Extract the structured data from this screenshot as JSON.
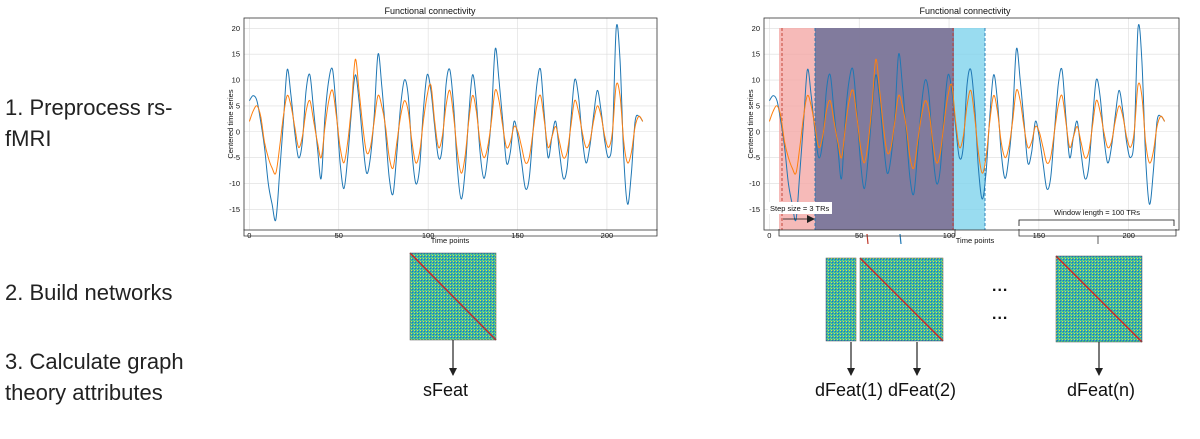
{
  "steps": {
    "step1": "1. Preprocess rs-fMRI",
    "step2": "2. Build networks",
    "step3": "3. Calculate graph theory attributes"
  },
  "chart_data": [
    {
      "type": "line",
      "title": "Functional connectivity",
      "xlabel": "Time points",
      "ylabel": "Centered time series",
      "xlim": [
        -3,
        228
      ],
      "ylim": [
        -19,
        22
      ],
      "xticks": [
        "0",
        "50",
        "100",
        "150",
        "200"
      ],
      "yticks": [
        "20",
        "15",
        "10",
        "5",
        "0",
        "-5",
        "-10",
        "-15"
      ],
      "grid": true,
      "series": [
        {
          "color": "#1f77b4",
          "values": [
            6,
            7,
            6,
            2,
            -3,
            -10,
            -14,
            -17,
            -8,
            2,
            12,
            7,
            0,
            -5,
            -2,
            8,
            11,
            4,
            -3,
            -9,
            3,
            10,
            12,
            4,
            -6,
            -11,
            -5,
            4,
            11,
            6,
            -2,
            -8,
            -5,
            3,
            15,
            9,
            0,
            -9,
            -12,
            -4,
            5,
            10,
            7,
            -4,
            -10,
            -7,
            4,
            11,
            8,
            1,
            -5,
            -3,
            9,
            12,
            5,
            -7,
            -13,
            -8,
            3,
            11,
            6,
            -4,
            -9,
            -5,
            3,
            16,
            10,
            2,
            -6,
            -4,
            2,
            -1,
            -6,
            -11,
            -9,
            0,
            9,
            12,
            3,
            -5,
            -1,
            2,
            -4,
            -9,
            -7,
            2,
            10,
            7,
            -1,
            -6,
            -3,
            3,
            8,
            4,
            -2,
            -5,
            -1,
            20,
            14,
            -5,
            -14,
            -8,
            2,
            3,
            2
          ]
        },
        {
          "color": "#ff7f0e",
          "values": [
            2,
            4,
            5,
            3,
            -2,
            -5,
            -7,
            -8,
            -3,
            3,
            7,
            5,
            1,
            -3,
            -1,
            4,
            6,
            2,
            -2,
            -5,
            1,
            6,
            8,
            3,
            -3,
            -6,
            -2,
            5,
            14,
            8,
            1,
            -4,
            -3,
            2,
            7,
            5,
            1,
            -5,
            -7,
            -2,
            3,
            6,
            4,
            -2,
            -6,
            -4,
            2,
            7,
            9,
            2,
            -3,
            -1,
            5,
            8,
            3,
            -4,
            -8,
            -5,
            2,
            7,
            4,
            -2,
            -5,
            -3,
            2,
            8,
            6,
            1,
            -3,
            -2,
            1,
            0,
            -3,
            -6,
            -5,
            0,
            5,
            7,
            2,
            -3,
            -1,
            1,
            -2,
            -5,
            -4,
            1,
            6,
            4,
            0,
            -3,
            -2,
            2,
            5,
            3,
            -1,
            -3,
            0,
            9,
            7,
            -2,
            -6,
            -4,
            1,
            3,
            2
          ]
        }
      ]
    },
    {
      "type": "line",
      "title": "Functional connectivity",
      "xlabel": "Time points",
      "ylabel": "Centered time series",
      "xlim": [
        -3,
        228
      ],
      "ylim": [
        -19,
        22
      ],
      "xticks": [
        "0",
        "50",
        "100",
        "150",
        "200"
      ],
      "yticks": [
        "20",
        "15",
        "10",
        "5",
        "0",
        "-5",
        "-10",
        "-15"
      ],
      "grid": true,
      "annotations": {
        "step_size": "Step size = 3 TRs",
        "window_length": "Window length = 100 TRs"
      }
    }
  ],
  "features": {
    "static": "sFeat",
    "dynamic": [
      "dFeat(1)",
      "dFeat(2)",
      "dFeat(n)"
    ],
    "ellipsis": "..."
  }
}
